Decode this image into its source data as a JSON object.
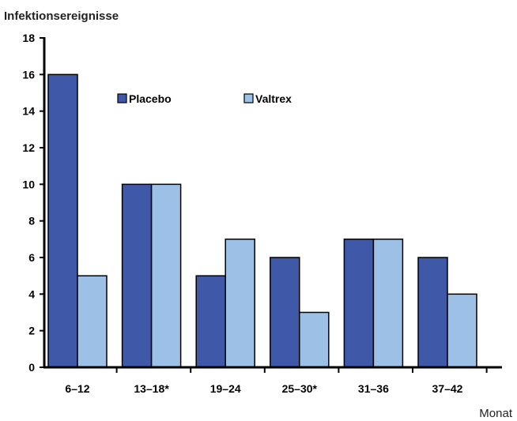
{
  "chart_data": {
    "type": "bar",
    "ylabel": "Infektionsereignisse",
    "xlabel": "Monat",
    "categories": [
      "6–12",
      "13–18*",
      "19–24",
      "25–30*",
      "31–36",
      "37–42"
    ],
    "ylim": [
      0,
      18
    ],
    "yticks": [
      0,
      2,
      4,
      6,
      8,
      10,
      12,
      14,
      16,
      18
    ],
    "series": [
      {
        "name": "Placebo",
        "color": "#3f58a8",
        "values": [
          16,
          10,
          5,
          6,
          7,
          6
        ]
      },
      {
        "name": "Valtrex",
        "color": "#9dc0e6",
        "values": [
          5,
          10,
          7,
          3,
          7,
          4
        ]
      }
    ],
    "legend": "top-center",
    "grid": false
  }
}
